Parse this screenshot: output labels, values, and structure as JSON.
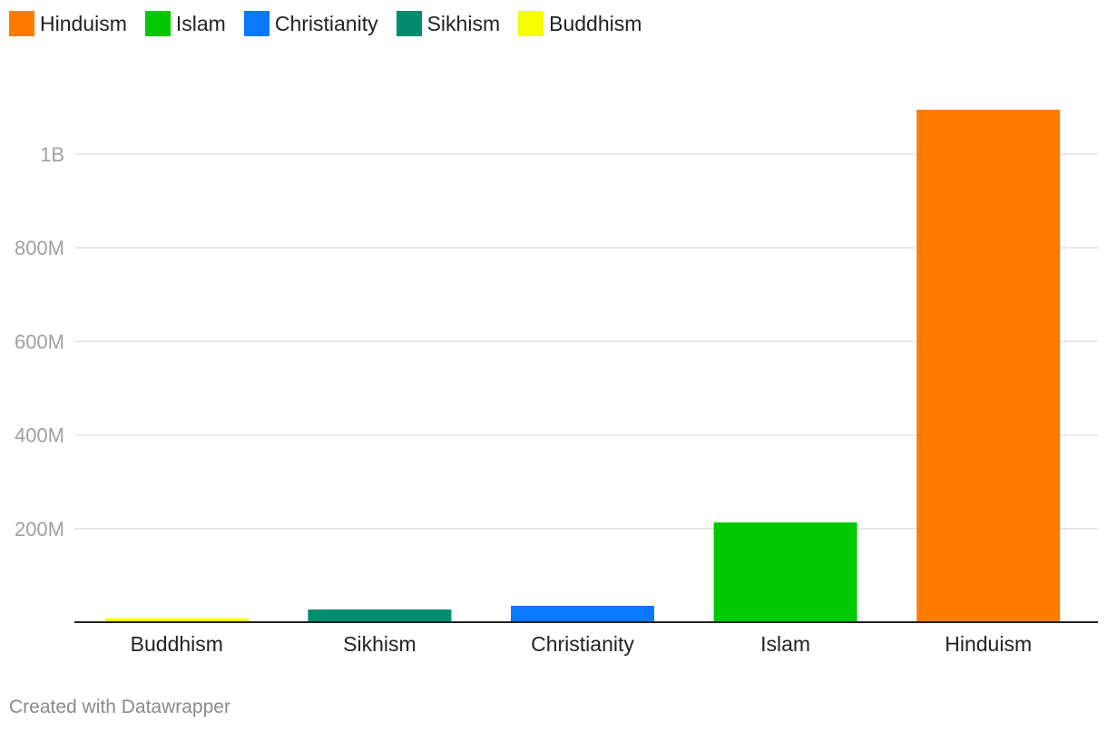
{
  "legend": {
    "items": [
      {
        "label": "Hinduism",
        "color": "#ff7b00"
      },
      {
        "label": "Islam",
        "color": "#00c800"
      },
      {
        "label": "Christianity",
        "color": "#0a78ff"
      },
      {
        "label": "Sikhism",
        "color": "#008c6e"
      },
      {
        "label": "Buddhism",
        "color": "#f5ff00"
      }
    ]
  },
  "footer": {
    "credit": "Created with Datawrapper"
  },
  "chart_data": {
    "type": "bar",
    "categories": [
      "Buddhism",
      "Sikhism",
      "Christianity",
      "Islam",
      "Hinduism"
    ],
    "values": [
      8500000,
      27000000,
      35000000,
      213000000,
      1095000000
    ],
    "colors": [
      "#f5ff00",
      "#008c6e",
      "#0a78ff",
      "#00c800",
      "#ff7b00"
    ],
    "yticks": [
      {
        "value": 200000000,
        "label": "200M"
      },
      {
        "value": 400000000,
        "label": "400M"
      },
      {
        "value": 600000000,
        "label": "600M"
      },
      {
        "value": 800000000,
        "label": "800M"
      },
      {
        "value": 1000000000,
        "label": "1B"
      }
    ],
    "ylim": [
      0,
      1150000000
    ],
    "grid": true,
    "legend_position": "top-left",
    "title": "",
    "xlabel": "",
    "ylabel": ""
  }
}
